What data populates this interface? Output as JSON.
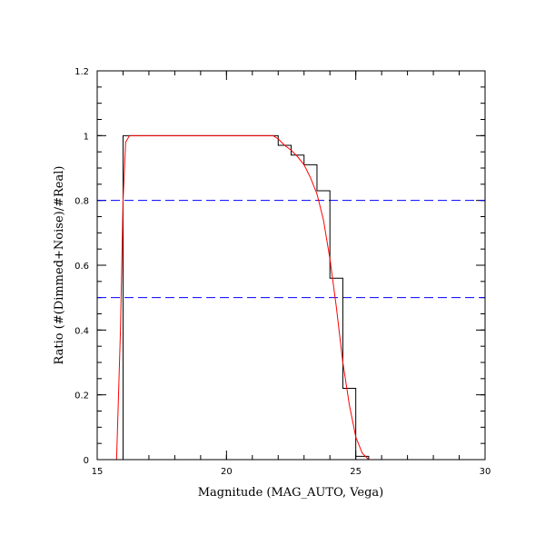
{
  "chart_data": {
    "type": "line",
    "title": "",
    "xlabel": "Magnitude (MAG_AUTO, Vega)",
    "ylabel": "Ratio (#(Dimmed+Noise)/#Real)",
    "xlim": [
      15,
      30
    ],
    "ylim": [
      0,
      1.2
    ],
    "x_ticks": [
      15,
      20,
      25,
      30
    ],
    "y_ticks": [
      0,
      0.2,
      0.4,
      0.6,
      0.8,
      1,
      1.2
    ],
    "x_minor_step": 1,
    "y_minor_step": 0.05,
    "grid": false,
    "series": [
      {
        "style": "histogram-step",
        "color": "#000000",
        "bin_edges": [
          16,
          16.5,
          17,
          17.5,
          18,
          18.5,
          19,
          19.5,
          20,
          20.5,
          21,
          21.5,
          22,
          22.5,
          23,
          23.5,
          24,
          24.5,
          25,
          25.5,
          26,
          26.5,
          27,
          27.5,
          28,
          28.5,
          29,
          29.5,
          30
        ],
        "values": [
          1.0,
          1.0,
          1.0,
          1.0,
          1.0,
          1.0,
          1.0,
          1.0,
          1.0,
          1.0,
          1.0,
          1.0,
          0.97,
          0.94,
          0.91,
          0.83,
          0.56,
          0.22,
          0.01,
          0,
          0,
          0,
          0,
          0,
          0,
          0,
          0,
          0
        ]
      },
      {
        "style": "fit-curve",
        "color": "#ff0000",
        "x": [
          15.75,
          15.9,
          16.0,
          16.1,
          16.25,
          17,
          18,
          19,
          20,
          21,
          21.8,
          22.0,
          22.25,
          22.5,
          22.75,
          23.0,
          23.25,
          23.5,
          23.75,
          24.0,
          24.25,
          24.5,
          24.75,
          25.0,
          25.25,
          25.5,
          26,
          27,
          28,
          29,
          30
        ],
        "y": [
          0.0,
          0.4,
          0.8,
          0.98,
          1.0,
          1.0,
          1.0,
          1.0,
          1.0,
          1.0,
          1.0,
          0.99,
          0.97,
          0.955,
          0.935,
          0.91,
          0.87,
          0.82,
          0.74,
          0.62,
          0.47,
          0.3,
          0.17,
          0.07,
          0.02,
          0.0,
          0.0,
          0.0,
          0.0,
          0.0,
          0.0
        ]
      }
    ],
    "reference_lines": [
      {
        "orientation": "horizontal",
        "y": 0.8,
        "color": "#0000ff",
        "style": "dashed"
      },
      {
        "orientation": "horizontal",
        "y": 0.5,
        "color": "#0000ff",
        "style": "dashed"
      }
    ]
  }
}
